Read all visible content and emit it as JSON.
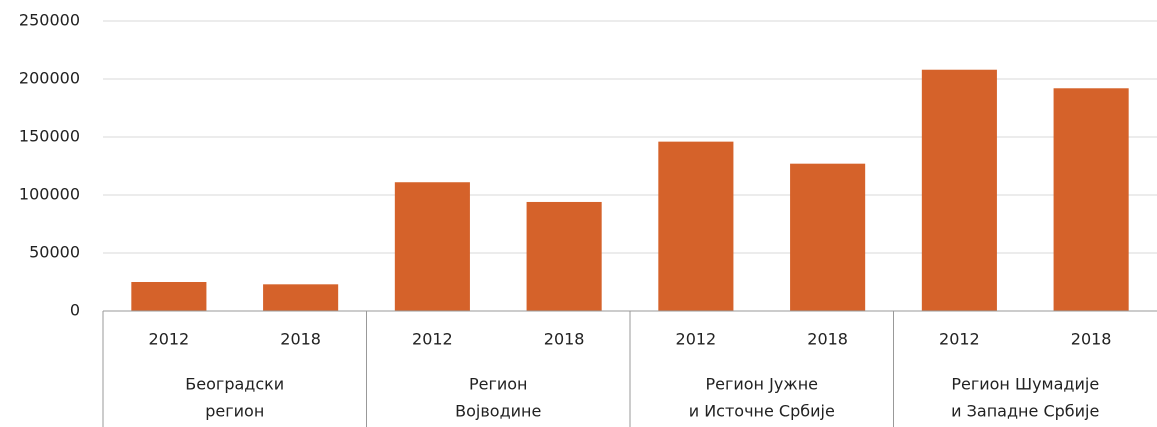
{
  "chart_data": {
    "type": "bar",
    "categories": [
      "2012",
      "2018",
      "2012",
      "2018",
      "2012",
      "2018",
      "2012",
      "2018"
    ],
    "groups": [
      [
        "Београдски",
        "регион"
      ],
      [
        "Регион",
        "Војводине"
      ],
      [
        "Регион Јужне",
        "и Источне Србије"
      ],
      [
        "Регион Шумадије",
        "и Западне Србије"
      ]
    ],
    "values": [
      25000,
      23000,
      111000,
      94000,
      146000,
      127000,
      208000,
      192000
    ],
    "color": "#d5622a",
    "ylim": [
      0,
      250000
    ],
    "yticks": [
      0,
      50000,
      100000,
      150000,
      200000,
      250000
    ],
    "grid": true
  }
}
